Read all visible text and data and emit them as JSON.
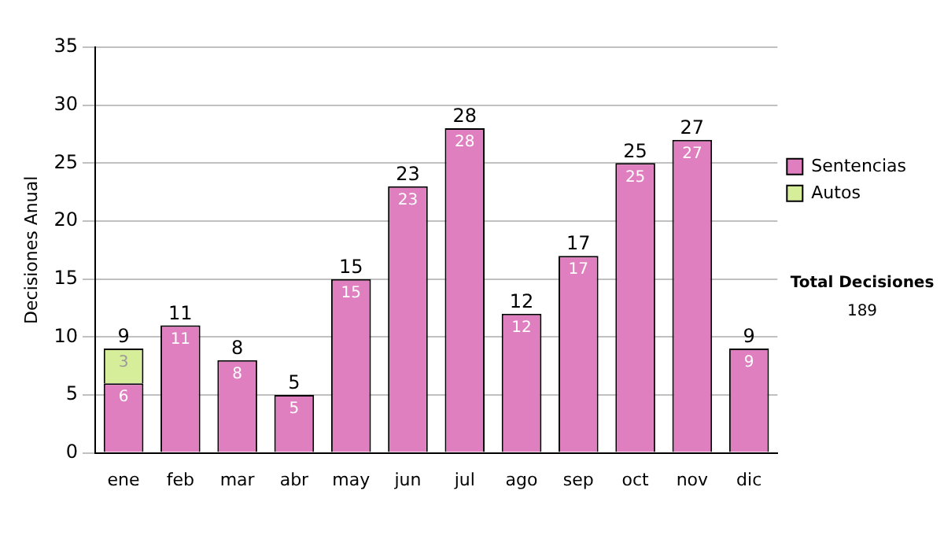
{
  "chart_data": {
    "type": "bar",
    "ylabel": "Decisiones Anual",
    "categories": [
      "ene",
      "feb",
      "mar",
      "abr",
      "may",
      "jun",
      "jul",
      "ago",
      "sep",
      "oct",
      "nov",
      "dic"
    ],
    "series": [
      {
        "name": "Sentencias",
        "color": "#df7fc0",
        "values": [
          6,
          11,
          8,
          5,
          15,
          23,
          28,
          12,
          17,
          25,
          27,
          9
        ]
      },
      {
        "name": "Autos",
        "color": "#d6ee9a",
        "values": [
          3,
          null,
          null,
          null,
          null,
          null,
          null,
          null,
          null,
          null,
          null,
          null
        ]
      }
    ],
    "stacked": true,
    "data_labels": true,
    "totals": [
      "9",
      "11",
      "8",
      "5",
      "15",
      "23",
      "28",
      "12",
      "17",
      "25",
      "27",
      "9"
    ],
    "ylim": [
      0,
      35
    ],
    "yticks": [
      0,
      5,
      10,
      15,
      20,
      25,
      30,
      35
    ],
    "grid": "y",
    "legend": "right",
    "annotations": [
      "Total Decisiones",
      "189"
    ]
  }
}
